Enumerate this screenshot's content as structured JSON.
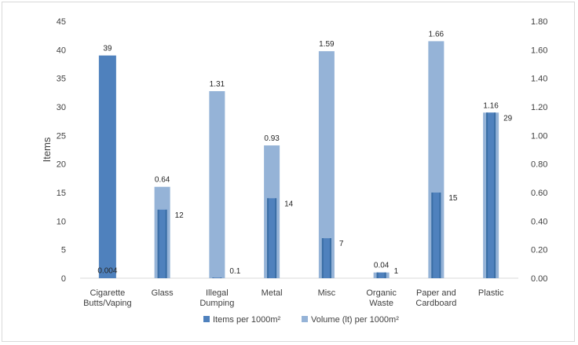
{
  "chart_data": {
    "type": "bar",
    "title": "",
    "xlabel": "",
    "ylabel": "Items",
    "y2label": "",
    "categories": [
      [
        "Cigarette",
        "Butts/Vaping"
      ],
      [
        "Glass"
      ],
      [
        "Illegal",
        "Dumping"
      ],
      [
        "Metal"
      ],
      [
        "Misc"
      ],
      [
        "Organic",
        "Waste"
      ],
      [
        "Paper and",
        "Cardboard"
      ],
      [
        "Plastic"
      ]
    ],
    "ylim": [
      0,
      45
    ],
    "y2lim": [
      0,
      1.8
    ],
    "yticks": [
      "0",
      "5",
      "10",
      "15",
      "20",
      "25",
      "30",
      "35",
      "40",
      "45"
    ],
    "y2ticks": [
      "0.00",
      "0.20",
      "0.40",
      "0.60",
      "0.80",
      "1.00",
      "1.20",
      "1.40",
      "1.60",
      "1.80"
    ],
    "grid": false,
    "legend_position": "bottom",
    "series": [
      {
        "name": "Items per 1000m²",
        "axis": "left",
        "color": "#4f81bd",
        "values": [
          39,
          12,
          0.1,
          14,
          7,
          1,
          15,
          29
        ],
        "labels": [
          "39",
          "12",
          "0.1",
          "14",
          "7",
          "1",
          "15",
          "29"
        ]
      },
      {
        "name": "Volume (lt) per 1000m²",
        "axis": "right",
        "color": "#95b3d7",
        "values": [
          0.004,
          0.64,
          1.31,
          0.93,
          1.59,
          0.04,
          1.66,
          1.16
        ],
        "labels": [
          "0.004",
          "0.64",
          "1.31",
          "0.93",
          "1.59",
          "0.04",
          "1.66",
          "1.16"
        ]
      }
    ]
  }
}
